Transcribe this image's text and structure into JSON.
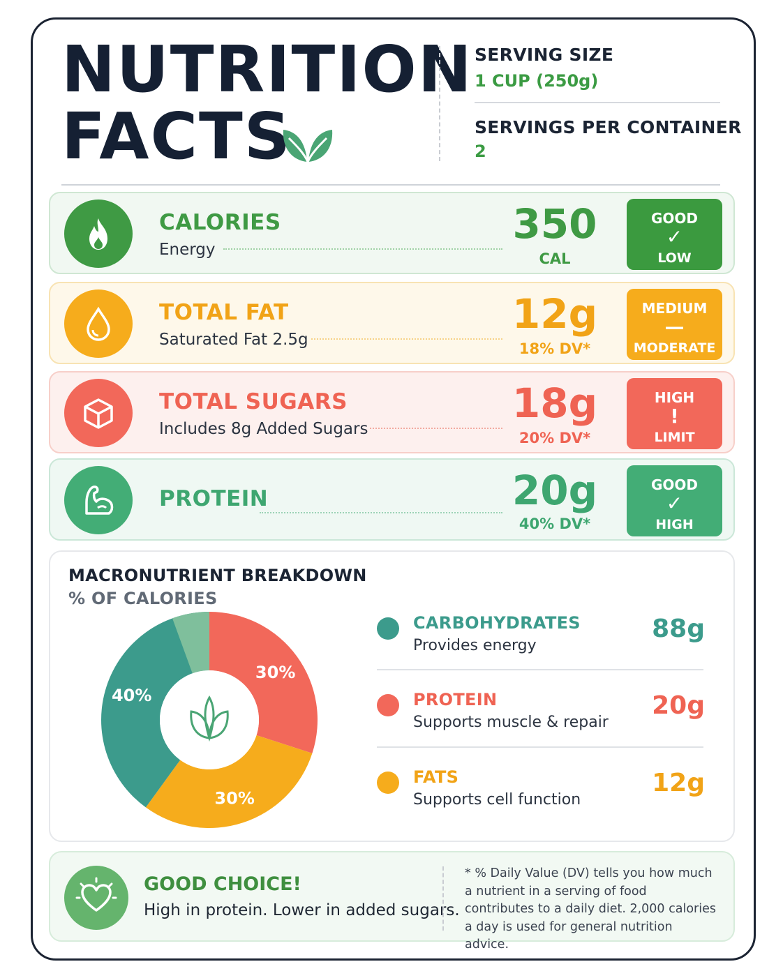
{
  "header": {
    "title_line1": "NUTRITION",
    "title_line2": "FACTS",
    "serving_size_label": "SERVING SIZE",
    "serving_size_value": "1 CUP (250g)",
    "servings_label": "SERVINGS PER CONTAINER",
    "servings_value": "2"
  },
  "colors": {
    "green": "#3f9a44",
    "orange": "#f6ac1c",
    "red": "#f2685a",
    "teal_green": "#43ad76",
    "teal": "#3c9b8c",
    "navy": "#152033"
  },
  "nutrients": [
    {
      "name": "CALORIES",
      "sub": "Energy",
      "value": "350",
      "unit_line": "CAL",
      "badge_top": "GOOD",
      "badge_symbol": "✓",
      "badge_bottom": "LOW",
      "icon": "flame-icon"
    },
    {
      "name": "TOTAL FAT",
      "sub": "Saturated Fat 2.5g",
      "value": "12g",
      "unit_line": "18% DV*",
      "badge_top": "MEDIUM",
      "badge_symbol": "—",
      "badge_bottom": "MODERATE",
      "icon": "droplet-icon"
    },
    {
      "name": "TOTAL SUGARS",
      "sub": "Includes 8g Added Sugars",
      "value": "18g",
      "unit_line": "20% DV*",
      "badge_top": "HIGH",
      "badge_symbol": "!",
      "badge_bottom": "LIMIT",
      "icon": "cube-icon"
    },
    {
      "name": "PROTEIN",
      "sub": "",
      "value": "20g",
      "unit_line": "40% DV*",
      "badge_top": "GOOD",
      "badge_symbol": "✓",
      "badge_bottom": "HIGH",
      "icon": "muscle-icon"
    }
  ],
  "macros": {
    "title": "MACRONUTRIENT BREAKDOWN",
    "subtitle": "% OF CALORIES",
    "items": [
      {
        "name": "CARBOHYDRATES",
        "desc": "Provides energy",
        "value": "88g"
      },
      {
        "name": "PROTEIN",
        "desc": "Supports muscle & repair",
        "value": "20g"
      },
      {
        "name": "FATS",
        "desc": "Supports cell function",
        "value": "12g"
      }
    ]
  },
  "chart_data": {
    "type": "pie",
    "categories": [
      "Carbohydrates",
      "Protein",
      "Fats"
    ],
    "values": [
      40,
      30,
      30
    ],
    "slice_labels": [
      "40%",
      "30%",
      "30%"
    ],
    "colors": [
      "#3c9b8c",
      "#f2685a",
      "#f6ac1c"
    ]
  },
  "footer": {
    "title": "GOOD CHOICE!",
    "text": "High in protein. Lower in added sugars.",
    "footnote": "* % Daily Value (DV) tells you how much a nutrient in a serving of food contributes to a daily diet. 2,000 calories a day is used for general nutrition advice."
  }
}
